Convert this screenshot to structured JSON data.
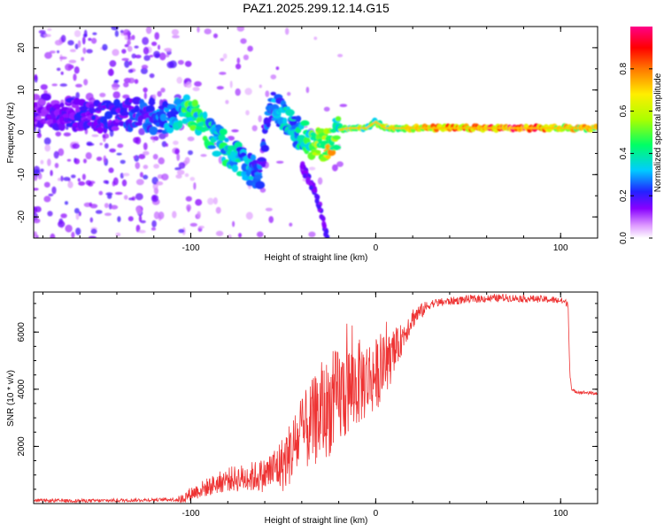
{
  "title": "PAZ1.2025.299.12.14.G15",
  "chart_data": [
    {
      "type": "heatmap",
      "title": "PAZ1.2025.299.12.14.G15",
      "xlabel": "Height of straight line (km)",
      "ylabel": "Frequency (Hz)",
      "xlim": [
        -185,
        120
      ],
      "ylim": [
        -25,
        25
      ],
      "xticks": [
        -100,
        0,
        100
      ],
      "xtick_labels": [
        "-100",
        "0",
        "100"
      ],
      "yticks": [
        20,
        10,
        0,
        -10,
        -20
      ],
      "ytick_labels": [
        "20",
        "10",
        "0",
        "-10",
        "-20"
      ],
      "colorbar": {
        "label": "Normalized spectral amplitude",
        "ticks": [
          0.0,
          0.2,
          0.4,
          0.6,
          0.8
        ],
        "tick_labels": [
          "0.0",
          "0.2",
          "0.4",
          "0.6",
          "0.8"
        ],
        "range": [
          0,
          1
        ]
      },
      "ridge": {
        "x": [
          -180,
          -160,
          -140,
          -125,
          -112,
          -102,
          -95,
          -88,
          -80,
          -72,
          -65,
          -62,
          -58,
          -55,
          -50,
          -45,
          -40,
          -35,
          -30,
          -25,
          -20,
          -15,
          -10,
          -5,
          0,
          5,
          10,
          20,
          40,
          60,
          80,
          95,
          100,
          110,
          120
        ],
        "y": [
          5,
          4,
          4,
          4,
          3.5,
          5,
          3,
          -1,
          -4,
          -7,
          -10,
          -9,
          5,
          6,
          4,
          1,
          -1,
          -2,
          -3,
          -3,
          0.5,
          1,
          1,
          1,
          2.5,
          1,
          1,
          1,
          1,
          1,
          1,
          1,
          1,
          1,
          1
        ],
        "amplitude": [
          0.15,
          0.2,
          0.2,
          0.25,
          0.3,
          0.45,
          0.45,
          0.4,
          0.4,
          0.35,
          0.3,
          0.25,
          0.25,
          0.3,
          0.35,
          0.35,
          0.4,
          0.45,
          0.6,
          0.75,
          0.45,
          0.5,
          0.5,
          0.55,
          0.5,
          0.55,
          0.65,
          0.7,
          0.8,
          0.85,
          0.9,
          0.75,
          0.7,
          0.7,
          0.7
        ]
      },
      "secondary_track": {
        "x": [
          -40,
          -35,
          -32,
          -30,
          -28,
          -26
        ],
        "y": [
          -8,
          -12,
          -15,
          -18,
          -22,
          -25
        ]
      }
    },
    {
      "type": "line",
      "xlabel": "Height of straight line (km)",
      "ylabel": "SNR (10 * v/v)",
      "xlim": [
        -185,
        120
      ],
      "ylim": [
        0,
        7400
      ],
      "xticks": [
        -100,
        0,
        100
      ],
      "xtick_labels": [
        "-100",
        "0",
        "100"
      ],
      "yticks": [
        2000,
        4000,
        6000
      ],
      "ytick_labels": [
        "2000",
        "4000",
        "6000"
      ],
      "color": "#ee3333",
      "envelope": {
        "x": [
          -185,
          -150,
          -120,
          -105,
          -100,
          -90,
          -80,
          -70,
          -60,
          -50,
          -40,
          -30,
          -20,
          -10,
          0,
          10,
          15,
          20,
          30,
          50,
          70,
          90,
          100,
          104,
          105,
          106,
          110,
          120
        ],
        "y": [
          100,
          100,
          130,
          150,
          350,
          600,
          850,
          900,
          1000,
          1400,
          2400,
          3100,
          3700,
          4200,
          4500,
          5200,
          5900,
          6500,
          7000,
          7150,
          7200,
          7150,
          7100,
          7000,
          4600,
          3950,
          3900,
          3850
        ]
      },
      "noise": {
        "x": [
          -185,
          -110,
          -100,
          -60,
          -50,
          -30,
          -20,
          0,
          15,
          30,
          104,
          106,
          120
        ],
        "amplitude": [
          60,
          60,
          250,
          600,
          1000,
          1700,
          1800,
          1300,
          500,
          150,
          120,
          60,
          60
        ]
      }
    }
  ]
}
